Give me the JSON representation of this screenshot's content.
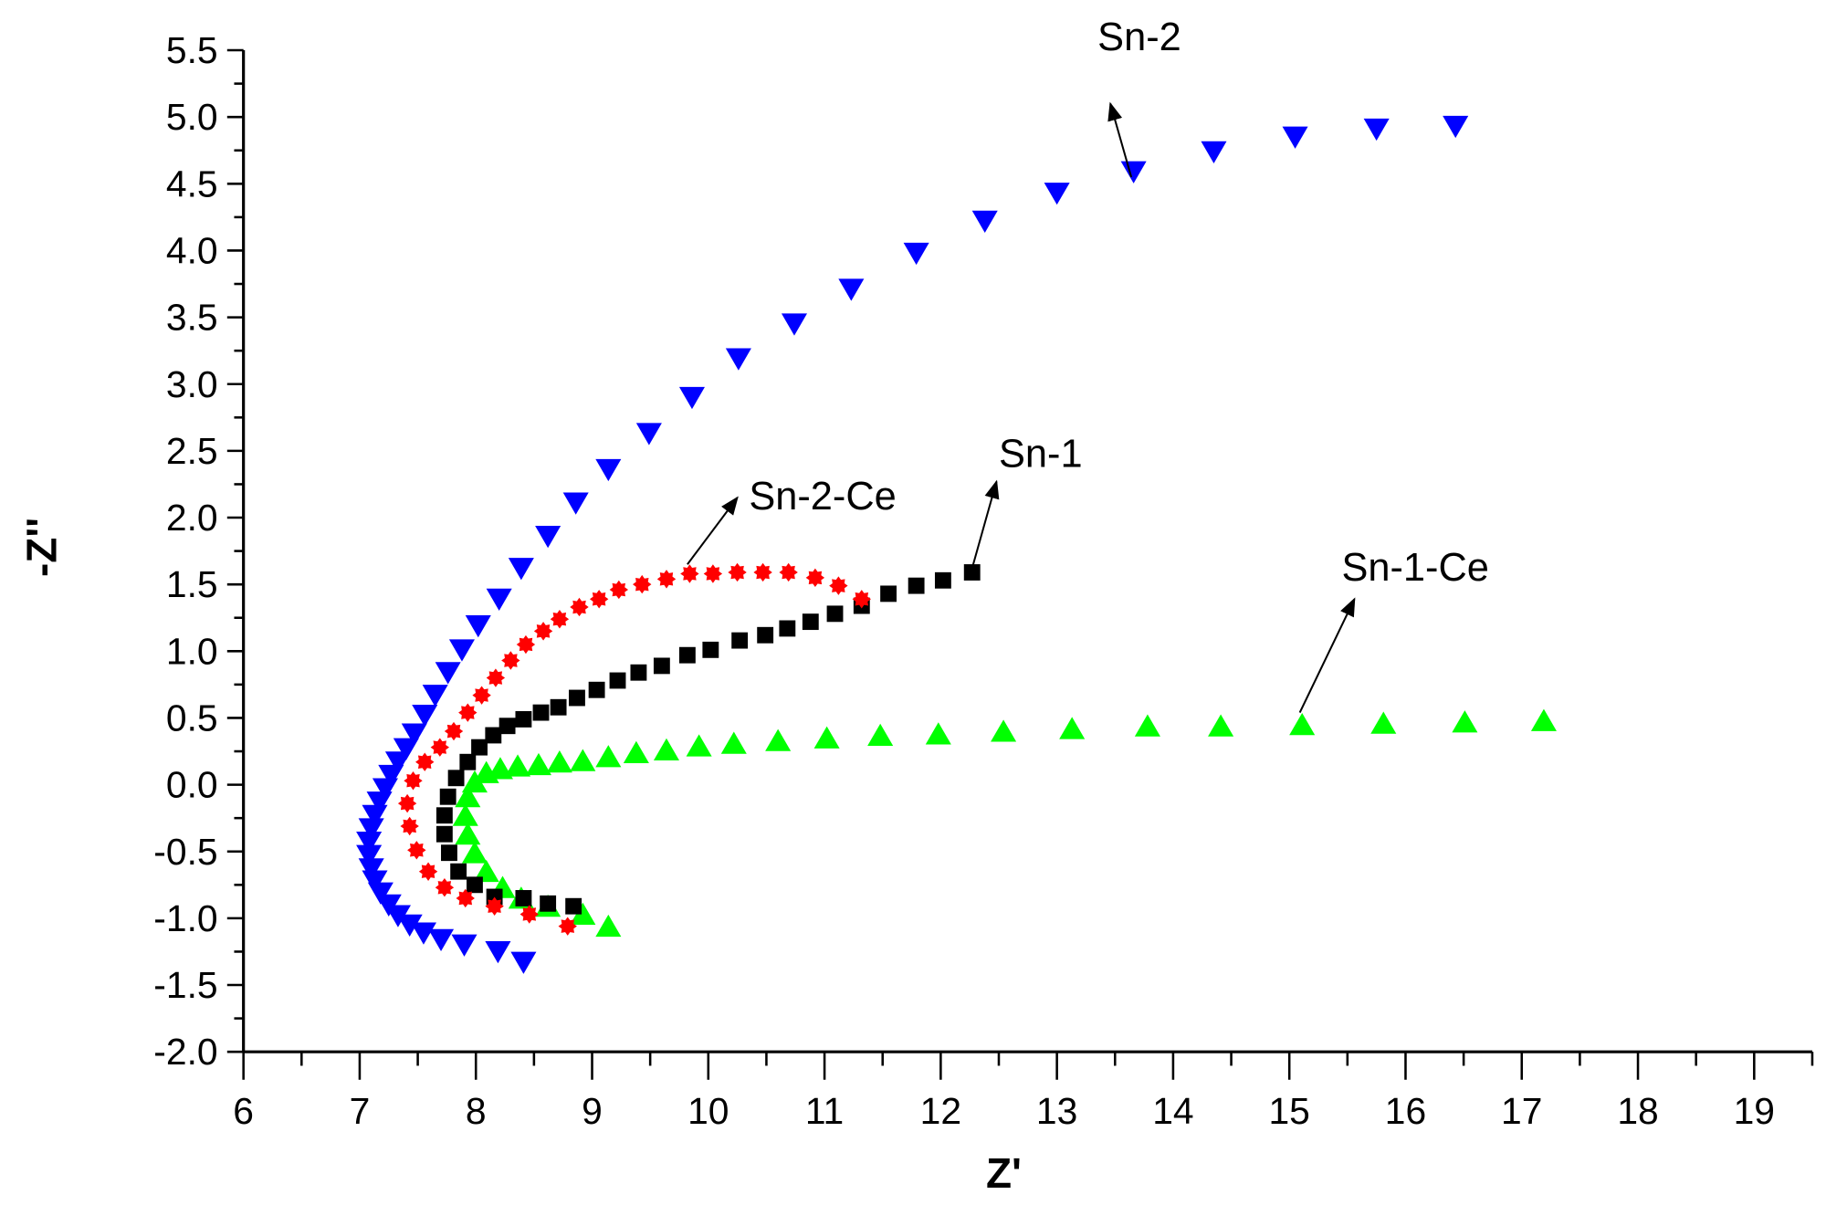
{
  "chart_data": {
    "type": "scatter",
    "title": "",
    "xlabel": "Z'",
    "ylabel": "-Z''",
    "xlim": [
      6,
      19.5
    ],
    "ylim": [
      -2.0,
      5.5
    ],
    "x_ticks": [
      "6",
      "7",
      "8",
      "9",
      "10",
      "11",
      "12",
      "13",
      "14",
      "15",
      "16",
      "17",
      "18",
      "19"
    ],
    "y_ticks": [
      "-2.0",
      "-1.5",
      "-1.0",
      "-0.5",
      "0.0",
      "0.5",
      "1.0",
      "1.5",
      "2.0",
      "2.5",
      "3.0",
      "3.5",
      "4.0",
      "4.5",
      "5.0",
      "5.5"
    ],
    "grid": false,
    "legend": "none (series labeled by arrow annotations)",
    "series": [
      {
        "name": "Sn-2",
        "marker": "triangle-down",
        "color": "#0000ff",
        "points": [
          [
            16.43,
            4.93
          ],
          [
            15.75,
            4.91
          ],
          [
            15.05,
            4.85
          ],
          [
            14.35,
            4.74
          ],
          [
            13.66,
            4.59
          ],
          [
            13.0,
            4.43
          ],
          [
            12.38,
            4.22
          ],
          [
            11.79,
            3.98
          ],
          [
            11.23,
            3.71
          ],
          [
            10.74,
            3.45
          ],
          [
            10.26,
            3.19
          ],
          [
            9.86,
            2.9
          ],
          [
            9.49,
            2.63
          ],
          [
            9.14,
            2.36
          ],
          [
            8.86,
            2.11
          ],
          [
            8.62,
            1.86
          ],
          [
            8.39,
            1.62
          ],
          [
            8.2,
            1.39
          ],
          [
            8.02,
            1.19
          ],
          [
            7.88,
            1.01
          ],
          [
            7.76,
            0.84
          ],
          [
            7.65,
            0.67
          ],
          [
            7.56,
            0.52
          ],
          [
            7.47,
            0.38
          ],
          [
            7.4,
            0.27
          ],
          [
            7.33,
            0.17
          ],
          [
            7.27,
            0.07
          ],
          [
            7.22,
            -0.03
          ],
          [
            7.17,
            -0.13
          ],
          [
            7.13,
            -0.23
          ],
          [
            7.1,
            -0.33
          ],
          [
            7.08,
            -0.43
          ],
          [
            7.08,
            -0.53
          ],
          [
            7.1,
            -0.63
          ],
          [
            7.13,
            -0.72
          ],
          [
            7.18,
            -0.81
          ],
          [
            7.25,
            -0.9
          ],
          [
            7.33,
            -0.98
          ],
          [
            7.43,
            -1.05
          ],
          [
            7.55,
            -1.11
          ],
          [
            7.7,
            -1.16
          ],
          [
            7.9,
            -1.2
          ],
          [
            8.19,
            -1.25
          ],
          [
            8.41,
            -1.33
          ]
        ]
      },
      {
        "name": "Sn-2-Ce",
        "marker": "star",
        "color": "#ff0000",
        "points": [
          [
            11.32,
            1.39
          ],
          [
            11.12,
            1.49
          ],
          [
            10.92,
            1.55
          ],
          [
            10.69,
            1.59
          ],
          [
            10.47,
            1.59
          ],
          [
            10.25,
            1.59
          ],
          [
            10.04,
            1.58
          ],
          [
            9.84,
            1.58
          ],
          [
            9.64,
            1.54
          ],
          [
            9.43,
            1.5
          ],
          [
            9.23,
            1.46
          ],
          [
            9.06,
            1.39
          ],
          [
            8.89,
            1.33
          ],
          [
            8.72,
            1.24
          ],
          [
            8.58,
            1.15
          ],
          [
            8.43,
            1.05
          ],
          [
            8.3,
            0.93
          ],
          [
            8.17,
            0.8
          ],
          [
            8.05,
            0.67
          ],
          [
            7.93,
            0.54
          ],
          [
            7.81,
            0.4
          ],
          [
            7.69,
            0.28
          ],
          [
            7.56,
            0.17
          ],
          [
            7.46,
            0.03
          ],
          [
            7.41,
            -0.14
          ],
          [
            7.43,
            -0.31
          ],
          [
            7.49,
            -0.49
          ],
          [
            7.59,
            -0.65
          ],
          [
            7.73,
            -0.77
          ],
          [
            7.91,
            -0.85
          ],
          [
            8.16,
            -0.91
          ],
          [
            8.46,
            -0.97
          ],
          [
            8.79,
            -1.06
          ]
        ]
      },
      {
        "name": "Sn-1",
        "marker": "square",
        "color": "#000000",
        "points": [
          [
            12.27,
            1.59
          ],
          [
            12.02,
            1.53
          ],
          [
            11.79,
            1.49
          ],
          [
            11.55,
            1.43
          ],
          [
            11.32,
            1.34
          ],
          [
            11.09,
            1.28
          ],
          [
            10.88,
            1.22
          ],
          [
            10.68,
            1.17
          ],
          [
            10.49,
            1.12
          ],
          [
            10.27,
            1.08
          ],
          [
            10.02,
            1.01
          ],
          [
            9.82,
            0.97
          ],
          [
            9.6,
            0.89
          ],
          [
            9.4,
            0.84
          ],
          [
            9.22,
            0.78
          ],
          [
            9.04,
            0.71
          ],
          [
            8.87,
            0.65
          ],
          [
            8.71,
            0.58
          ],
          [
            8.56,
            0.54
          ],
          [
            8.41,
            0.49
          ],
          [
            8.27,
            0.44
          ],
          [
            8.15,
            0.37
          ],
          [
            8.03,
            0.28
          ],
          [
            7.93,
            0.17
          ],
          [
            7.83,
            0.05
          ],
          [
            7.76,
            -0.09
          ],
          [
            7.73,
            -0.23
          ],
          [
            7.73,
            -0.37
          ],
          [
            7.77,
            -0.51
          ],
          [
            7.85,
            -0.65
          ],
          [
            7.99,
            -0.75
          ],
          [
            8.16,
            -0.84
          ],
          [
            8.41,
            -0.85
          ],
          [
            8.62,
            -0.89
          ],
          [
            8.84,
            -0.91
          ]
        ]
      },
      {
        "name": "Sn-1-Ce",
        "marker": "triangle-up",
        "color": "#00ff00",
        "points": [
          [
            17.19,
            0.48
          ],
          [
            16.51,
            0.47
          ],
          [
            15.81,
            0.46
          ],
          [
            15.11,
            0.45
          ],
          [
            14.41,
            0.44
          ],
          [
            13.78,
            0.44
          ],
          [
            13.13,
            0.42
          ],
          [
            12.54,
            0.4
          ],
          [
            11.98,
            0.38
          ],
          [
            11.48,
            0.37
          ],
          [
            11.02,
            0.35
          ],
          [
            10.6,
            0.33
          ],
          [
            10.22,
            0.31
          ],
          [
            9.92,
            0.29
          ],
          [
            9.64,
            0.26
          ],
          [
            9.38,
            0.24
          ],
          [
            9.14,
            0.21
          ],
          [
            8.92,
            0.18
          ],
          [
            8.72,
            0.17
          ],
          [
            8.54,
            0.15
          ],
          [
            8.36,
            0.14
          ],
          [
            8.21,
            0.12
          ],
          [
            8.09,
            0.09
          ],
          [
            7.99,
            0.02
          ],
          [
            7.93,
            -0.09
          ],
          [
            7.91,
            -0.23
          ],
          [
            7.93,
            -0.37
          ],
          [
            7.99,
            -0.51
          ],
          [
            8.09,
            -0.65
          ],
          [
            8.23,
            -0.77
          ],
          [
            8.39,
            -0.85
          ],
          [
            8.62,
            -0.91
          ],
          [
            8.92,
            -0.97
          ],
          [
            9.14,
            -1.06
          ]
        ]
      }
    ],
    "annotations": [
      {
        "text": "Sn-2",
        "series": "Sn-2"
      },
      {
        "text": "Sn-1",
        "series": "Sn-1"
      },
      {
        "text": "Sn-2-Ce",
        "series": "Sn-2-Ce"
      },
      {
        "text": "Sn-1-Ce",
        "series": "Sn-1-Ce"
      }
    ]
  }
}
